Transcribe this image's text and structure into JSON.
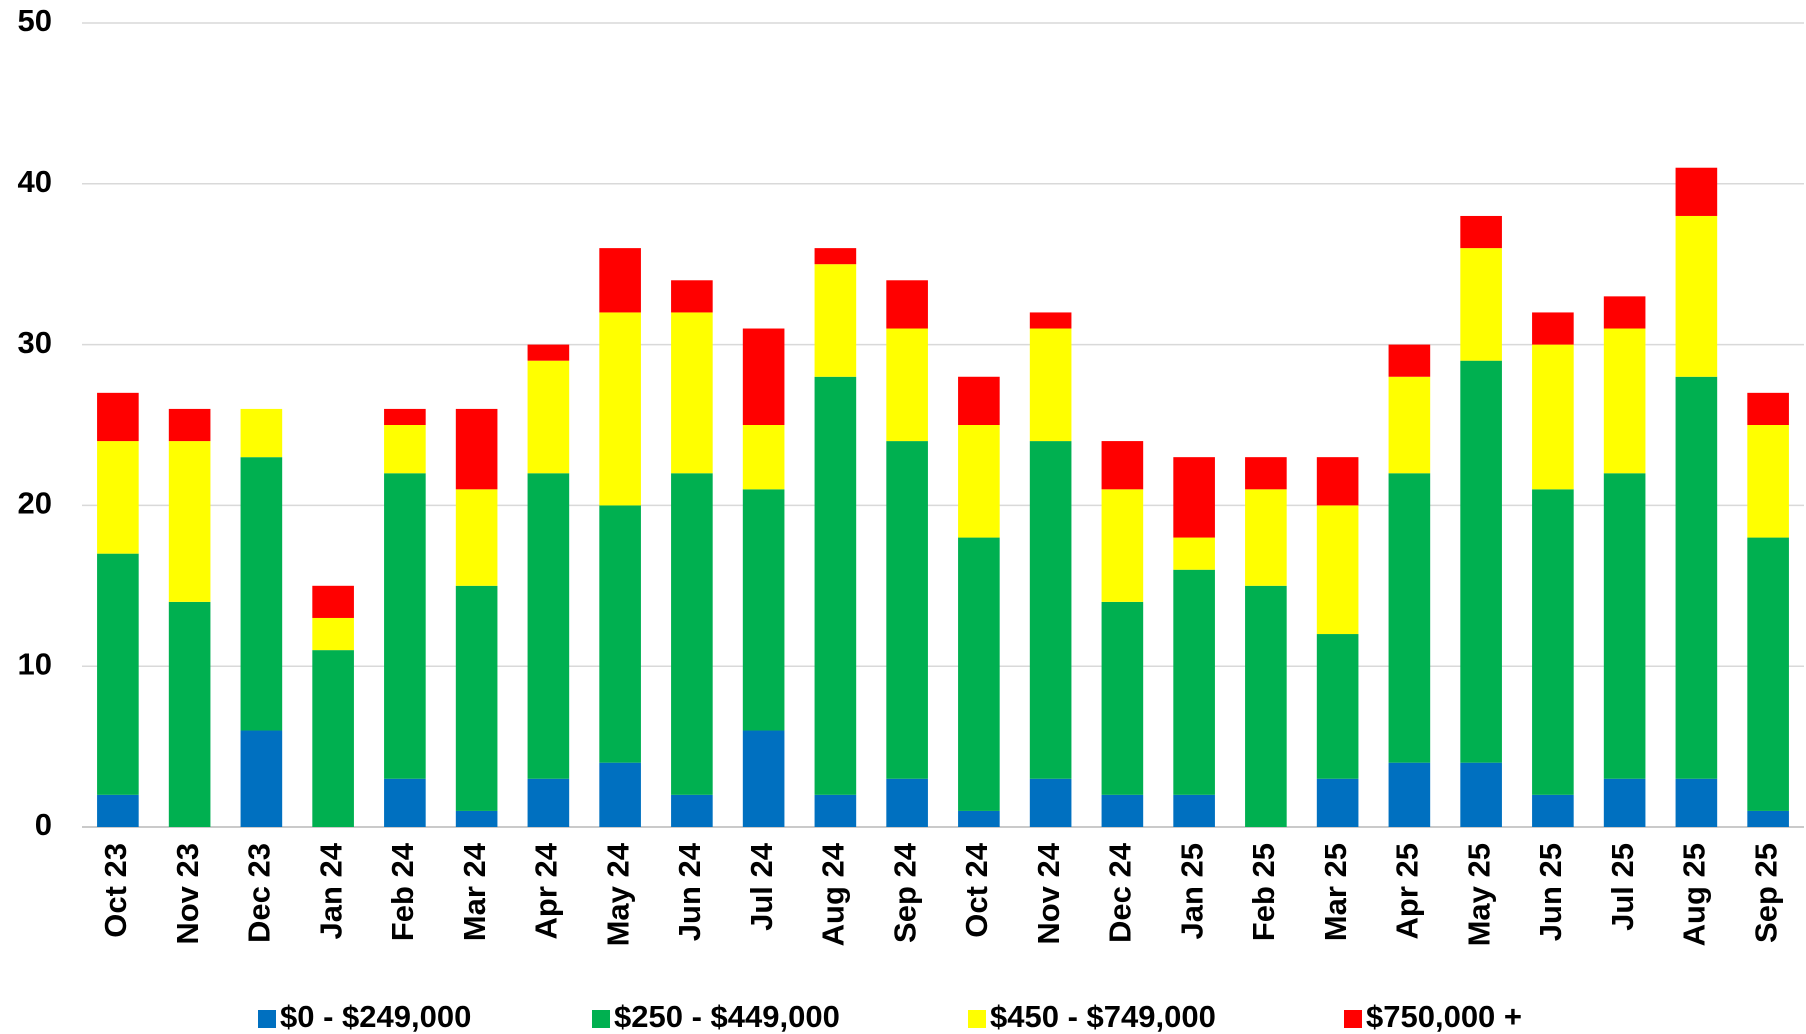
{
  "chart_data": {
    "type": "stacked_bar",
    "categories": [
      "Oct 23",
      "Nov 23",
      "Dec 23",
      "Jan 24",
      "Feb 24",
      "Mar 24",
      "Apr 24",
      "May 24",
      "Jun 24",
      "Jul 24",
      "Aug 24",
      "Sep 24",
      "Oct 24",
      "Nov 24",
      "Dec 24",
      "Jan 25",
      "Feb 25",
      "Mar 25",
      "Apr 25",
      "May 25",
      "Jun 25",
      "Jul 25",
      "Aug 25",
      "Sep 25"
    ],
    "series": [
      {
        "name": "$0 - $249,000",
        "color": "#0070c0",
        "values": [
          2,
          0,
          6,
          0,
          3,
          1,
          3,
          4,
          2,
          6,
          2,
          3,
          1,
          3,
          2,
          2,
          0,
          3,
          4,
          4,
          2,
          3,
          3,
          1
        ]
      },
      {
        "name": "$250 - $449,000",
        "color": "#00b050",
        "values": [
          15,
          14,
          17,
          11,
          19,
          14,
          19,
          16,
          20,
          15,
          26,
          21,
          17,
          21,
          12,
          14,
          15,
          9,
          18,
          25,
          19,
          19,
          25,
          17
        ]
      },
      {
        "name": "$450 - $749,000",
        "color": "#ffff00",
        "values": [
          7,
          10,
          3,
          2,
          3,
          6,
          7,
          12,
          10,
          4,
          7,
          7,
          7,
          7,
          7,
          2,
          6,
          8,
          6,
          7,
          9,
          9,
          10,
          7
        ]
      },
      {
        "name": "$750,000 +",
        "color": "#ff0000",
        "values": [
          3,
          2,
          0,
          2,
          1,
          5,
          1,
          4,
          2,
          6,
          1,
          3,
          3,
          1,
          3,
          5,
          2,
          3,
          2,
          2,
          2,
          2,
          3,
          2
        ]
      }
    ],
    "ylim": [
      0,
      50
    ],
    "yticks": [
      0,
      10,
      20,
      30,
      40,
      50
    ],
    "grid": true,
    "legend": "bottom"
  }
}
